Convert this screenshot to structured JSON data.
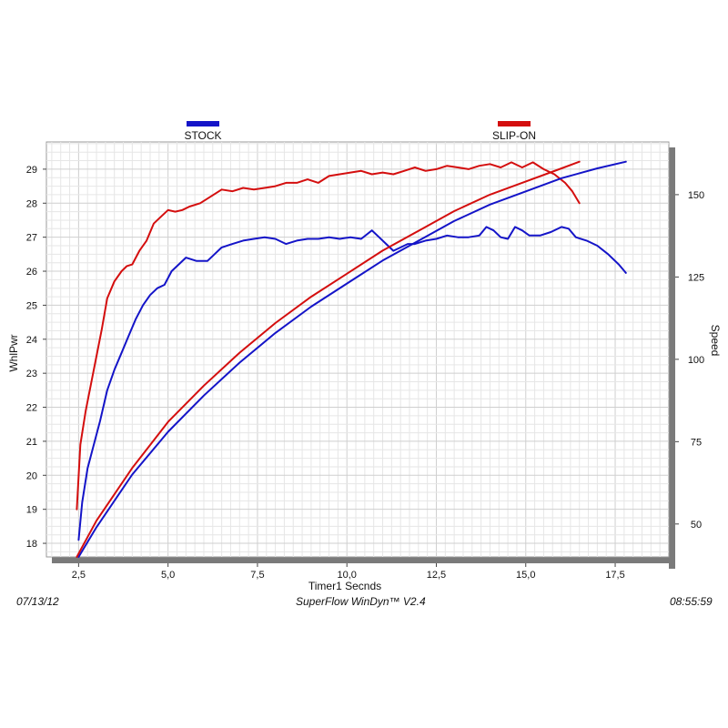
{
  "chart_data": {
    "type": "line",
    "xlabel": "Timer1 Secnds",
    "ylabel_left": "WhlPwr",
    "ylabel_right": "Speed",
    "xlim": [
      1.6,
      19.0
    ],
    "ylim_left": [
      17.6,
      29.8
    ],
    "ylim_right": [
      40,
      166
    ],
    "x_ticks": [
      2.5,
      5.0,
      7.5,
      10.0,
      12.5,
      15.0,
      17.5
    ],
    "x_tick_labels": [
      "2,5",
      "5,0",
      "7,5",
      "10,0",
      "12,5",
      "15,0",
      "17,5"
    ],
    "y_left_ticks": [
      18,
      19,
      20,
      21,
      22,
      23,
      24,
      25,
      26,
      27,
      28,
      29
    ],
    "y_right_ticks": [
      50,
      75,
      100,
      125,
      150
    ],
    "grid": true,
    "legend": [
      {
        "name": "STOCK",
        "color": "#1414c8",
        "position": "top-left"
      },
      {
        "name": "SLIP-ON",
        "color": "#d40e0e",
        "position": "top-right"
      }
    ],
    "series": [
      {
        "name": "STOCK",
        "axis": "left",
        "quantity": "WhlPwr",
        "color": "#1414c8",
        "x": [
          2.5,
          2.6,
          2.75,
          2.9,
          3.1,
          3.3,
          3.5,
          3.7,
          3.9,
          4.1,
          4.3,
          4.5,
          4.7,
          4.9,
          5.1,
          5.3,
          5.5,
          5.8,
          6.1,
          6.3,
          6.5,
          6.8,
          7.1,
          7.4,
          7.7,
          8.0,
          8.3,
          8.6,
          8.9,
          9.2,
          9.5,
          9.8,
          10.1,
          10.4,
          10.7,
          10.9,
          11.1,
          11.3,
          11.5,
          11.7,
          11.9,
          12.2,
          12.5,
          12.8,
          13.1,
          13.4,
          13.7,
          13.9,
          14.1,
          14.3,
          14.5,
          14.7,
          14.9,
          15.1,
          15.4,
          15.7,
          16.0,
          16.2,
          16.4,
          16.7,
          17.0,
          17.3,
          17.6,
          17.8
        ],
        "y": [
          18.1,
          19.2,
          20.2,
          20.8,
          21.6,
          22.5,
          23.1,
          23.6,
          24.1,
          24.6,
          25.0,
          25.3,
          25.5,
          25.6,
          26.0,
          26.2,
          26.4,
          26.3,
          26.3,
          26.5,
          26.7,
          26.8,
          26.9,
          26.95,
          27.0,
          26.95,
          26.8,
          26.9,
          26.95,
          26.95,
          27.0,
          26.95,
          27.0,
          26.95,
          27.2,
          27.0,
          26.8,
          26.6,
          26.7,
          26.8,
          26.8,
          26.9,
          26.95,
          27.05,
          27.0,
          27.0,
          27.05,
          27.3,
          27.2,
          27.0,
          26.95,
          27.3,
          27.2,
          27.05,
          27.05,
          27.15,
          27.3,
          27.25,
          27.0,
          26.9,
          26.75,
          26.5,
          26.2,
          25.95
        ]
      },
      {
        "name": "SLIP-ON",
        "axis": "left",
        "quantity": "WhlPwr",
        "color": "#d40e0e",
        "x": [
          2.45,
          2.55,
          2.7,
          2.85,
          3.0,
          3.15,
          3.3,
          3.5,
          3.7,
          3.85,
          4.0,
          4.2,
          4.4,
          4.6,
          4.8,
          5.0,
          5.2,
          5.4,
          5.6,
          5.9,
          6.2,
          6.5,
          6.8,
          7.1,
          7.4,
          7.7,
          8.0,
          8.3,
          8.6,
          8.9,
          9.2,
          9.5,
          9.8,
          10.1,
          10.4,
          10.7,
          11.0,
          11.3,
          11.6,
          11.9,
          12.2,
          12.5,
          12.8,
          13.1,
          13.4,
          13.7,
          14.0,
          14.3,
          14.6,
          14.9,
          15.2,
          15.5,
          15.8,
          16.1,
          16.3,
          16.5
        ],
        "y": [
          19.0,
          20.9,
          21.9,
          22.7,
          23.5,
          24.3,
          25.2,
          25.7,
          26.0,
          26.15,
          26.2,
          26.6,
          26.9,
          27.4,
          27.6,
          27.8,
          27.75,
          27.8,
          27.9,
          28.0,
          28.2,
          28.4,
          28.35,
          28.45,
          28.4,
          28.45,
          28.5,
          28.6,
          28.6,
          28.7,
          28.6,
          28.8,
          28.85,
          28.9,
          28.95,
          28.85,
          28.9,
          28.85,
          28.95,
          29.05,
          28.95,
          29.0,
          29.1,
          29.05,
          29.0,
          29.1,
          29.15,
          29.05,
          29.2,
          29.05,
          29.2,
          29.0,
          28.85,
          28.6,
          28.35,
          28.0
        ]
      },
      {
        "name": "STOCK",
        "axis": "right",
        "quantity": "Speed",
        "color": "#1414c8",
        "x": [
          2.5,
          3.0,
          4.0,
          5.0,
          6.0,
          7.0,
          8.0,
          9.0,
          10.0,
          11.0,
          12.0,
          13.0,
          14.0,
          15.0,
          16.0,
          17.0,
          17.8
        ],
        "y": [
          40,
          49,
          65,
          78,
          89,
          99,
          108,
          116,
          123,
          130,
          136,
          142,
          147,
          151,
          155,
          158,
          160
        ]
      },
      {
        "name": "SLIP-ON",
        "axis": "right",
        "quantity": "Speed",
        "color": "#d40e0e",
        "x": [
          2.45,
          3.0,
          4.0,
          5.0,
          6.0,
          7.0,
          8.0,
          9.0,
          10.0,
          11.0,
          12.0,
          13.0,
          14.0,
          15.0,
          16.0,
          16.5
        ],
        "y": [
          40,
          51,
          67,
          81,
          92,
          102,
          111,
          119,
          126,
          133,
          139,
          145,
          150,
          154,
          158,
          160
        ]
      }
    ]
  },
  "footer": {
    "date": "07/13/12",
    "software": "SuperFlow WinDyn™ V2.4",
    "time": "08:55:59"
  }
}
